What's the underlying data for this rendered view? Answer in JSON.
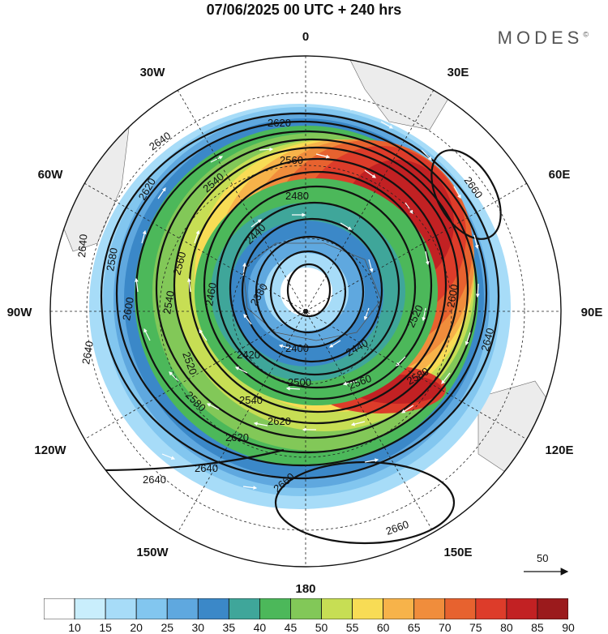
{
  "header": {
    "title": "07/06/2025  00 UTC  + 240 hrs",
    "brand": "MODES",
    "brand_mark": "©"
  },
  "map": {
    "projection": "polar stereographic (Southern Hemisphere)",
    "longitude_labels": {
      "top": "0",
      "bottom": "180",
      "left": "90W",
      "right": "90E",
      "upper_left": "30W",
      "upper_right": "30E",
      "mid_left": "60W",
      "mid_right": "60E",
      "lower_left": "120W",
      "lower_right": "120E",
      "bottom_left": "150W",
      "bottom_right": "150E"
    },
    "contour_labels": [
      "2620",
      "2640",
      "2640",
      "2620",
      "2580",
      "2540",
      "2560",
      "2480",
      "2440",
      "2380",
      "2460",
      "2560",
      "2540",
      "2600",
      "2640",
      "2640",
      "2580",
      "2540",
      "2520",
      "2420",
      "2400",
      "2440",
      "2520",
      "2560",
      "2500",
      "2580",
      "2600",
      "2620",
      "2620",
      "2640",
      "2640",
      "2660",
      "2660",
      "2660"
    ],
    "reference_vector": "50"
  },
  "colorbar": {
    "ticks": [
      "10",
      "15",
      "20",
      "25",
      "30",
      "35",
      "40",
      "45",
      "50",
      "55",
      "60",
      "65",
      "70",
      "75",
      "80",
      "85",
      "90"
    ],
    "colors": [
      "#ffffff",
      "#c9eefc",
      "#a7dcf8",
      "#82c6ef",
      "#5fa8df",
      "#3b88c8",
      "#3fa69a",
      "#4cb85a",
      "#82c858",
      "#c7de54",
      "#f8dc55",
      "#f7b34a",
      "#f08d3c",
      "#e7622f",
      "#dd3c2a",
      "#c22123",
      "#9b1a1c"
    ]
  }
}
